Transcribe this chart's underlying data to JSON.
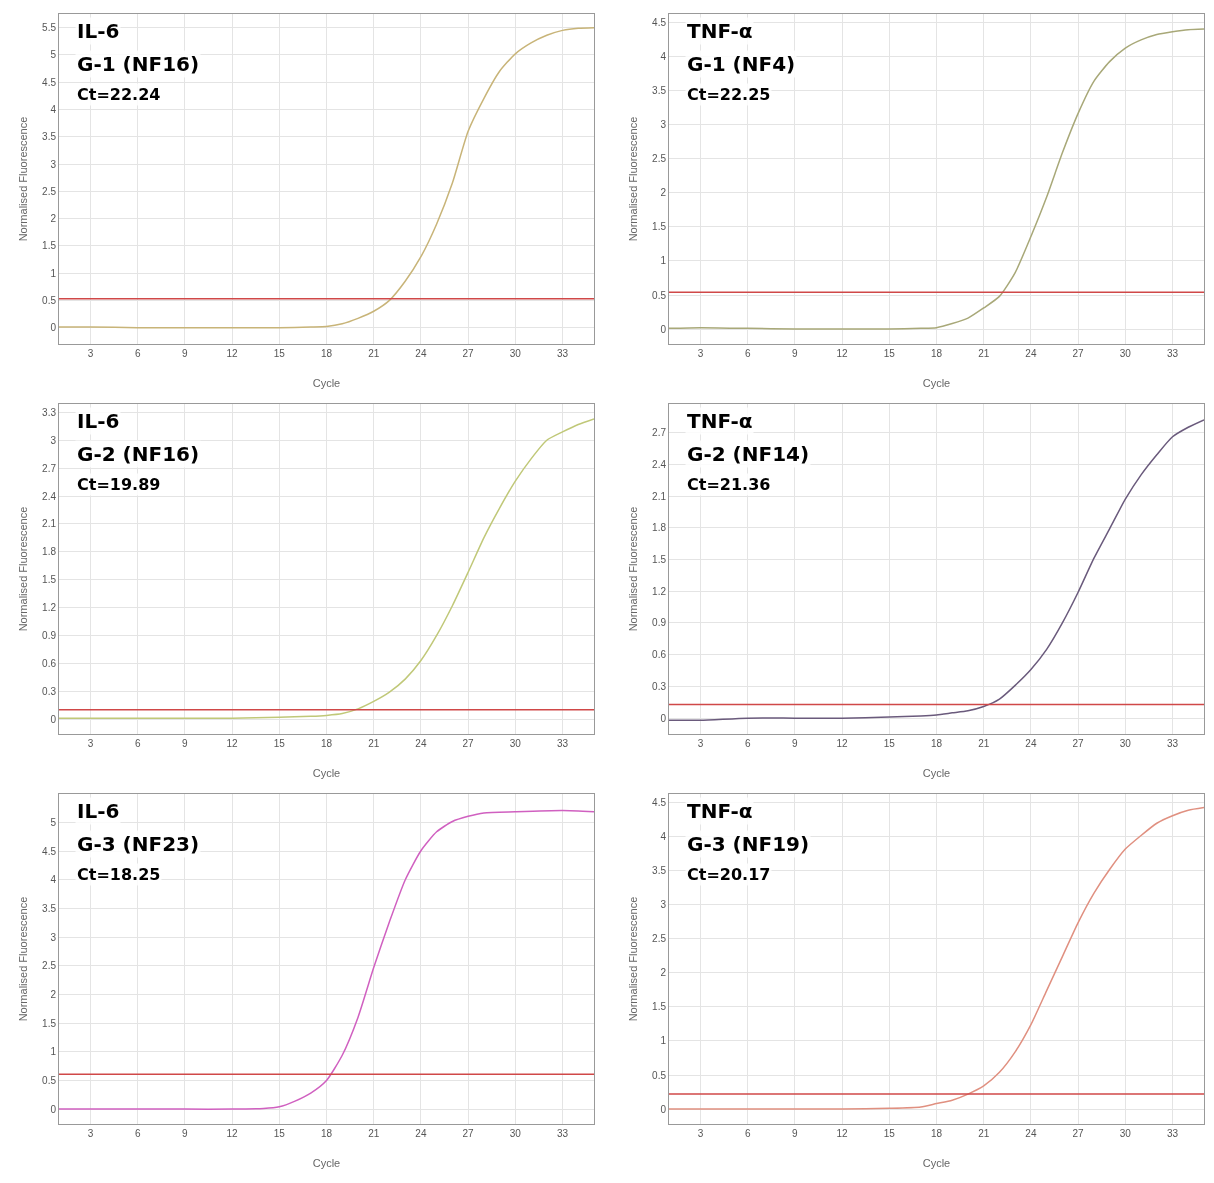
{
  "chart_data": [
    {
      "type": "line",
      "title": "IL-6",
      "subtitle": "G-1 (NF16)",
      "annotations": [
        "Ct=22.24"
      ],
      "xlabel": "Cycle",
      "ylabel": "Normalised Fluorescence",
      "grid": true,
      "x": [
        1,
        3,
        6,
        9,
        12,
        15,
        17,
        18,
        19,
        20,
        21,
        22,
        23,
        24,
        25,
        26,
        27,
        28,
        29,
        30,
        31,
        32,
        33,
        34,
        35
      ],
      "series": [
        {
          "color": "#c8b478",
          "values": [
            0.01,
            0.01,
            0,
            0,
            0,
            0,
            0.01,
            0.02,
            0.07,
            0.17,
            0.3,
            0.5,
            0.85,
            1.3,
            1.9,
            2.65,
            3.6,
            4.2,
            4.7,
            5.02,
            5.22,
            5.36,
            5.45,
            5.49,
            5.5
          ]
        }
      ],
      "xlim": [
        1,
        35
      ],
      "xticks": [
        3,
        6,
        9,
        12,
        15,
        18,
        21,
        24,
        27,
        30,
        33
      ],
      "ylim": [
        -0.3,
        5.75
      ],
      "yticks": [
        0,
        0.5,
        1,
        1.5,
        2,
        2.5,
        3,
        3.5,
        4,
        4.5,
        5,
        5.5
      ],
      "ref_lines": [
        {
          "axis": "y",
          "value": 0.53,
          "color": "#d04848"
        }
      ]
    },
    {
      "type": "line",
      "title": "TNF-α",
      "subtitle": "G-1 (NF4)",
      "annotations": [
        "Ct=22.25"
      ],
      "xlabel": "Cycle",
      "ylabel": "Normalised Fluorescence",
      "grid": true,
      "x": [
        1,
        3,
        6,
        9,
        12,
        15,
        17,
        18,
        19,
        20,
        21,
        22,
        23,
        24,
        25,
        26,
        27,
        28,
        29,
        30,
        31,
        32,
        33,
        34,
        35
      ],
      "series": [
        {
          "color": "#a8a878",
          "values": [
            0.01,
            0.02,
            0.01,
            0,
            0,
            0,
            0.01,
            0.02,
            0.08,
            0.16,
            0.31,
            0.48,
            0.83,
            1.36,
            1.94,
            2.59,
            3.17,
            3.64,
            3.93,
            4.13,
            4.25,
            4.33,
            4.37,
            4.4,
            4.41
          ]
        }
      ],
      "xlim": [
        1,
        35
      ],
      "xticks": [
        3,
        6,
        9,
        12,
        15,
        18,
        21,
        24,
        27,
        30,
        33
      ],
      "ylim": [
        -0.22,
        4.63
      ],
      "yticks": [
        0,
        0.5,
        1,
        1.5,
        2,
        2.5,
        3,
        3.5,
        4,
        4.5
      ],
      "ref_lines": [
        {
          "axis": "y",
          "value": 0.54,
          "color": "#d04848"
        }
      ]
    },
    {
      "type": "line",
      "title": "IL-6",
      "subtitle": "G-2 (NF16)",
      "annotations": [
        "Ct=19.89"
      ],
      "xlabel": "Cycle",
      "ylabel": "Normalised Fluorescence",
      "grid": true,
      "x": [
        1,
        3,
        6,
        9,
        12,
        15,
        17,
        18,
        19,
        20,
        21,
        22,
        23,
        24,
        25,
        26,
        27,
        28,
        29,
        30,
        31,
        32,
        33,
        34,
        35
      ],
      "series": [
        {
          "color": "#c0c878",
          "values": [
            0.01,
            0.01,
            0.01,
            0.01,
            0.01,
            0.02,
            0.03,
            0.04,
            0.06,
            0.11,
            0.19,
            0.29,
            0.43,
            0.63,
            0.9,
            1.22,
            1.58,
            1.95,
            2.27,
            2.56,
            2.8,
            3.0,
            3.09,
            3.17,
            3.23
          ]
        }
      ],
      "xlim": [
        1,
        35
      ],
      "xticks": [
        3,
        6,
        9,
        12,
        15,
        18,
        21,
        24,
        27,
        30,
        33
      ],
      "ylim": [
        -0.16,
        3.39
      ],
      "yticks": [
        0,
        0.3,
        0.6,
        0.9,
        1.2,
        1.5,
        1.8,
        2.1,
        2.4,
        2.7,
        3,
        3.3
      ],
      "ref_lines": [
        {
          "axis": "y",
          "value": 0.1,
          "color": "#d04848"
        }
      ]
    },
    {
      "type": "line",
      "title": "TNF-α",
      "subtitle": "G-2 (NF14)",
      "annotations": [
        "Ct=21.36"
      ],
      "xlabel": "Cycle",
      "ylabel": "Normalised Fluorescence",
      "grid": true,
      "x": [
        1,
        3,
        6,
        9,
        12,
        15,
        17,
        18,
        19,
        20,
        21,
        22,
        23,
        24,
        25,
        26,
        27,
        28,
        29,
        30,
        31,
        32,
        33,
        34,
        35
      ],
      "series": [
        {
          "color": "#6a5a7c",
          "values": [
            -0.02,
            -0.02,
            0,
            0,
            0,
            0.01,
            0.02,
            0.03,
            0.05,
            0.07,
            0.11,
            0.18,
            0.31,
            0.46,
            0.65,
            0.9,
            1.19,
            1.51,
            1.79,
            2.07,
            2.3,
            2.49,
            2.66,
            2.75,
            2.82
          ]
        }
      ],
      "xlim": [
        1,
        35
      ],
      "xticks": [
        3,
        6,
        9,
        12,
        15,
        18,
        21,
        24,
        27,
        30,
        33
      ],
      "ylim": [
        -0.15,
        2.97
      ],
      "yticks": [
        0,
        0.3,
        0.6,
        0.9,
        1.2,
        1.5,
        1.8,
        2.1,
        2.4,
        2.7
      ],
      "ref_lines": [
        {
          "axis": "y",
          "value": 0.13,
          "color": "#d04848"
        }
      ]
    },
    {
      "type": "line",
      "title": "IL-6",
      "subtitle": "G-3 (NF23)",
      "annotations": [
        "Ct=18.25"
      ],
      "xlabel": "Cycle",
      "ylabel": "Normalised Fluorescence",
      "grid": true,
      "x": [
        1,
        3,
        6,
        9,
        12,
        14,
        15,
        16,
        17,
        18,
        19,
        20,
        21,
        22,
        23,
        24,
        25,
        26,
        27,
        28,
        30,
        33,
        35
      ],
      "series": [
        {
          "color": "#d060c0",
          "values": [
            0,
            0,
            0,
            0,
            0,
            0.01,
            0.04,
            0.14,
            0.28,
            0.5,
            0.94,
            1.6,
            2.47,
            3.27,
            4.0,
            4.51,
            4.84,
            5.02,
            5.11,
            5.17,
            5.19,
            5.21,
            5.19
          ]
        }
      ],
      "xlim": [
        1,
        35
      ],
      "xticks": [
        3,
        6,
        9,
        12,
        15,
        18,
        21,
        24,
        27,
        30,
        33
      ],
      "ylim": [
        -0.26,
        5.5
      ],
      "yticks": [
        0,
        0.5,
        1,
        1.5,
        2,
        2.5,
        3,
        3.5,
        4,
        4.5,
        5
      ],
      "ref_lines": [
        {
          "axis": "y",
          "value": 0.61,
          "color": "#d04848"
        }
      ]
    },
    {
      "type": "line",
      "title": "TNF-α",
      "subtitle": "G-3 (NF19)",
      "annotations": [
        "Ct=20.17"
      ],
      "xlabel": "Cycle",
      "ylabel": "Normalised Fluorescence",
      "grid": true,
      "x": [
        1,
        3,
        6,
        9,
        12,
        15,
        17,
        18,
        19,
        20,
        21,
        22,
        23,
        24,
        25,
        26,
        27,
        28,
        29,
        30,
        31,
        32,
        33,
        34,
        35
      ],
      "series": [
        {
          "color": "#e09080",
          "values": [
            0,
            0,
            0,
            0,
            0,
            0.01,
            0.03,
            0.08,
            0.13,
            0.22,
            0.34,
            0.54,
            0.84,
            1.24,
            1.74,
            2.24,
            2.74,
            3.17,
            3.52,
            3.82,
            4.02,
            4.2,
            4.31,
            4.39,
            4.43
          ]
        }
      ],
      "xlim": [
        1,
        35
      ],
      "xticks": [
        3,
        6,
        9,
        12,
        15,
        18,
        21,
        24,
        27,
        30,
        33
      ],
      "ylim": [
        -0.22,
        4.63
      ],
      "yticks": [
        0,
        0.5,
        1,
        1.5,
        2,
        2.5,
        3,
        3.5,
        4,
        4.5
      ],
      "ref_lines": [
        {
          "axis": "y",
          "value": 0.22,
          "color": "#d04848"
        }
      ]
    }
  ]
}
